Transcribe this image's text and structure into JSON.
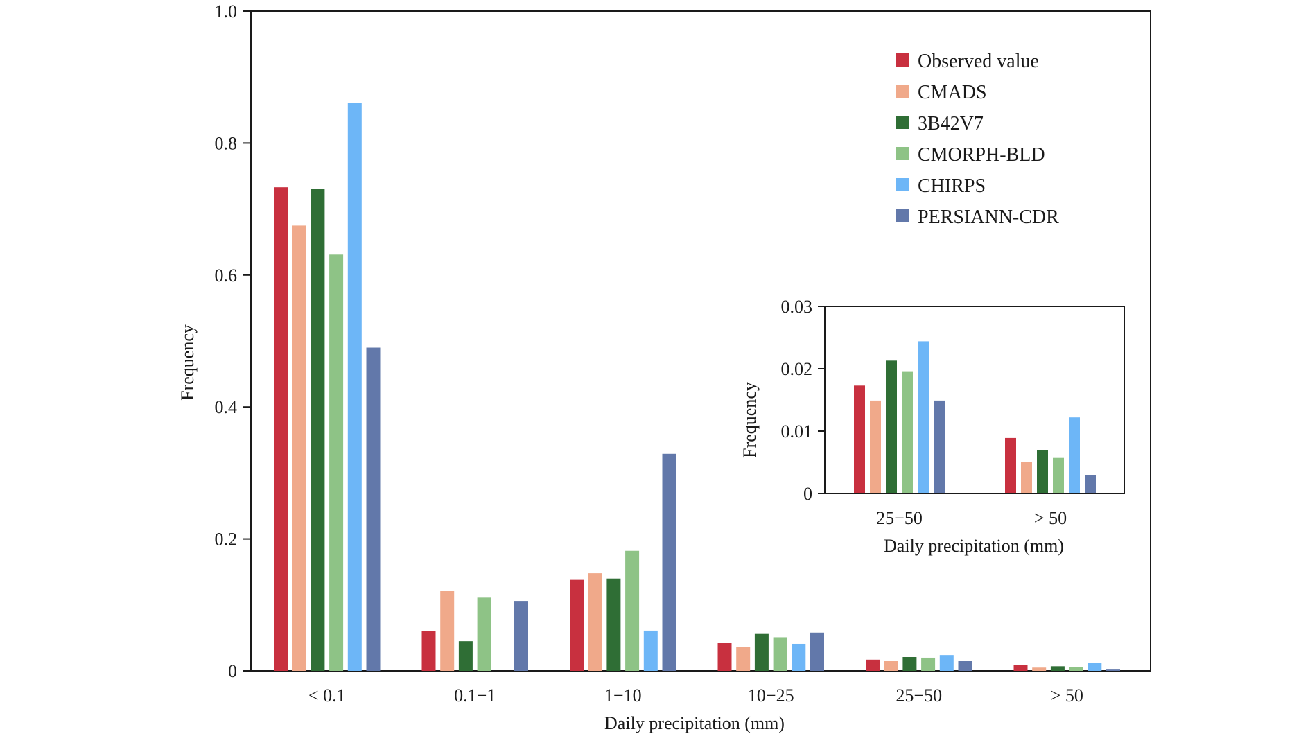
{
  "colors": {
    "Observed value": "#c8303f",
    "CMADS": "#f0a98a",
    "3B42V7": "#2f6e35",
    "CMORPH-BLD": "#8ec386",
    "CHIRPS": "#6db6f7",
    "PERSIANN-CDR": "#6278aa"
  },
  "chart_data": [
    {
      "type": "bar",
      "title": "",
      "xlabel": "Daily precipitation (mm)",
      "ylabel": "Frequency",
      "ylim": [
        0,
        1.0
      ],
      "yticks": [
        "0",
        "0.2",
        "0.4",
        "0.6",
        "0.8",
        "1.0"
      ],
      "categories": [
        "< 0.1",
        "0.1−1",
        "1−10",
        "10−25",
        "25−50",
        "> 50"
      ],
      "legend_position": "top-right",
      "grid": false,
      "series": [
        {
          "name": "Observed value",
          "values": [
            0.733,
            0.06,
            0.138,
            0.043,
            0.017,
            0.009
          ]
        },
        {
          "name": "CMADS",
          "values": [
            0.675,
            0.121,
            0.148,
            0.036,
            0.015,
            0.005
          ]
        },
        {
          "name": "3B42V7",
          "values": [
            0.731,
            0.045,
            0.14,
            0.056,
            0.021,
            0.007
          ]
        },
        {
          "name": "CMORPH-BLD",
          "values": [
            0.631,
            0.111,
            0.182,
            0.051,
            0.02,
            0.006
          ]
        },
        {
          "name": "CHIRPS",
          "values": [
            0.861,
            0.0,
            0.061,
            0.041,
            0.024,
            0.012
          ]
        },
        {
          "name": "PERSIANN-CDR",
          "values": [
            0.49,
            0.106,
            0.329,
            0.058,
            0.015,
            0.003
          ]
        }
      ]
    },
    {
      "type": "bar",
      "title": "",
      "xlabel": "Daily precipitation (mm)",
      "ylabel": "Frequency",
      "ylim": [
        0,
        0.03
      ],
      "yticks": [
        "0",
        "0.01",
        "0.02",
        "0.03"
      ],
      "categories": [
        "25−50",
        "> 50"
      ],
      "grid": false,
      "series": [
        {
          "name": "Observed value",
          "values": [
            0.0173,
            0.0089
          ]
        },
        {
          "name": "CMADS",
          "values": [
            0.0149,
            0.0051
          ]
        },
        {
          "name": "3B42V7",
          "values": [
            0.0213,
            0.007
          ]
        },
        {
          "name": "CMORPH-BLD",
          "values": [
            0.0196,
            0.0057
          ]
        },
        {
          "name": "CHIRPS",
          "values": [
            0.0244,
            0.0122
          ]
        },
        {
          "name": "PERSIANN-CDR",
          "values": [
            0.0149,
            0.0029
          ]
        }
      ]
    }
  ]
}
